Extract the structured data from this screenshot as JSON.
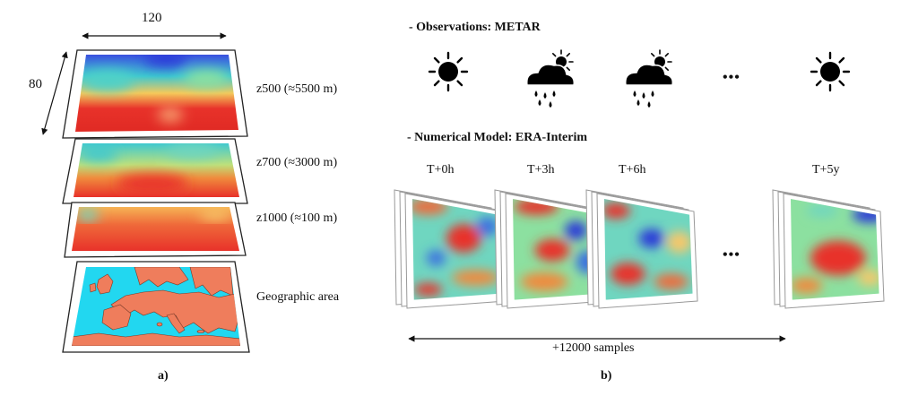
{
  "panel_a": {
    "width_label": "120",
    "height_label": "80",
    "layers": [
      {
        "name": "z500",
        "label": "z500 (≈5500 m)"
      },
      {
        "name": "z700",
        "label": "z700 (≈3000 m)"
      },
      {
        "name": "z1000",
        "label": "z1000 (≈100 m)"
      },
      {
        "name": "geo",
        "label": "Geographic area"
      }
    ],
    "caption": "a)"
  },
  "panel_b": {
    "observations_title": "- Observations: METAR",
    "model_title": "- Numerical Model: ERA-Interim",
    "weather_sequence": [
      "sun-icon",
      "rain-cloud-icon",
      "rain-cloud-icon",
      "ellipsis",
      "sun-icon"
    ],
    "time_steps": [
      "T+0h",
      "T+3h",
      "T+6h",
      "T+5y"
    ],
    "ellipsis": "•••",
    "samples_label": "+12000 samples",
    "caption": "b)"
  },
  "colors": {
    "field_warm": "#e8322a",
    "field_mid": "#f5c95a",
    "field_cool": "#3ec8d0",
    "field_cold": "#3a4fe0",
    "sea": "#22d7f0",
    "land": "#ef7d5c"
  }
}
